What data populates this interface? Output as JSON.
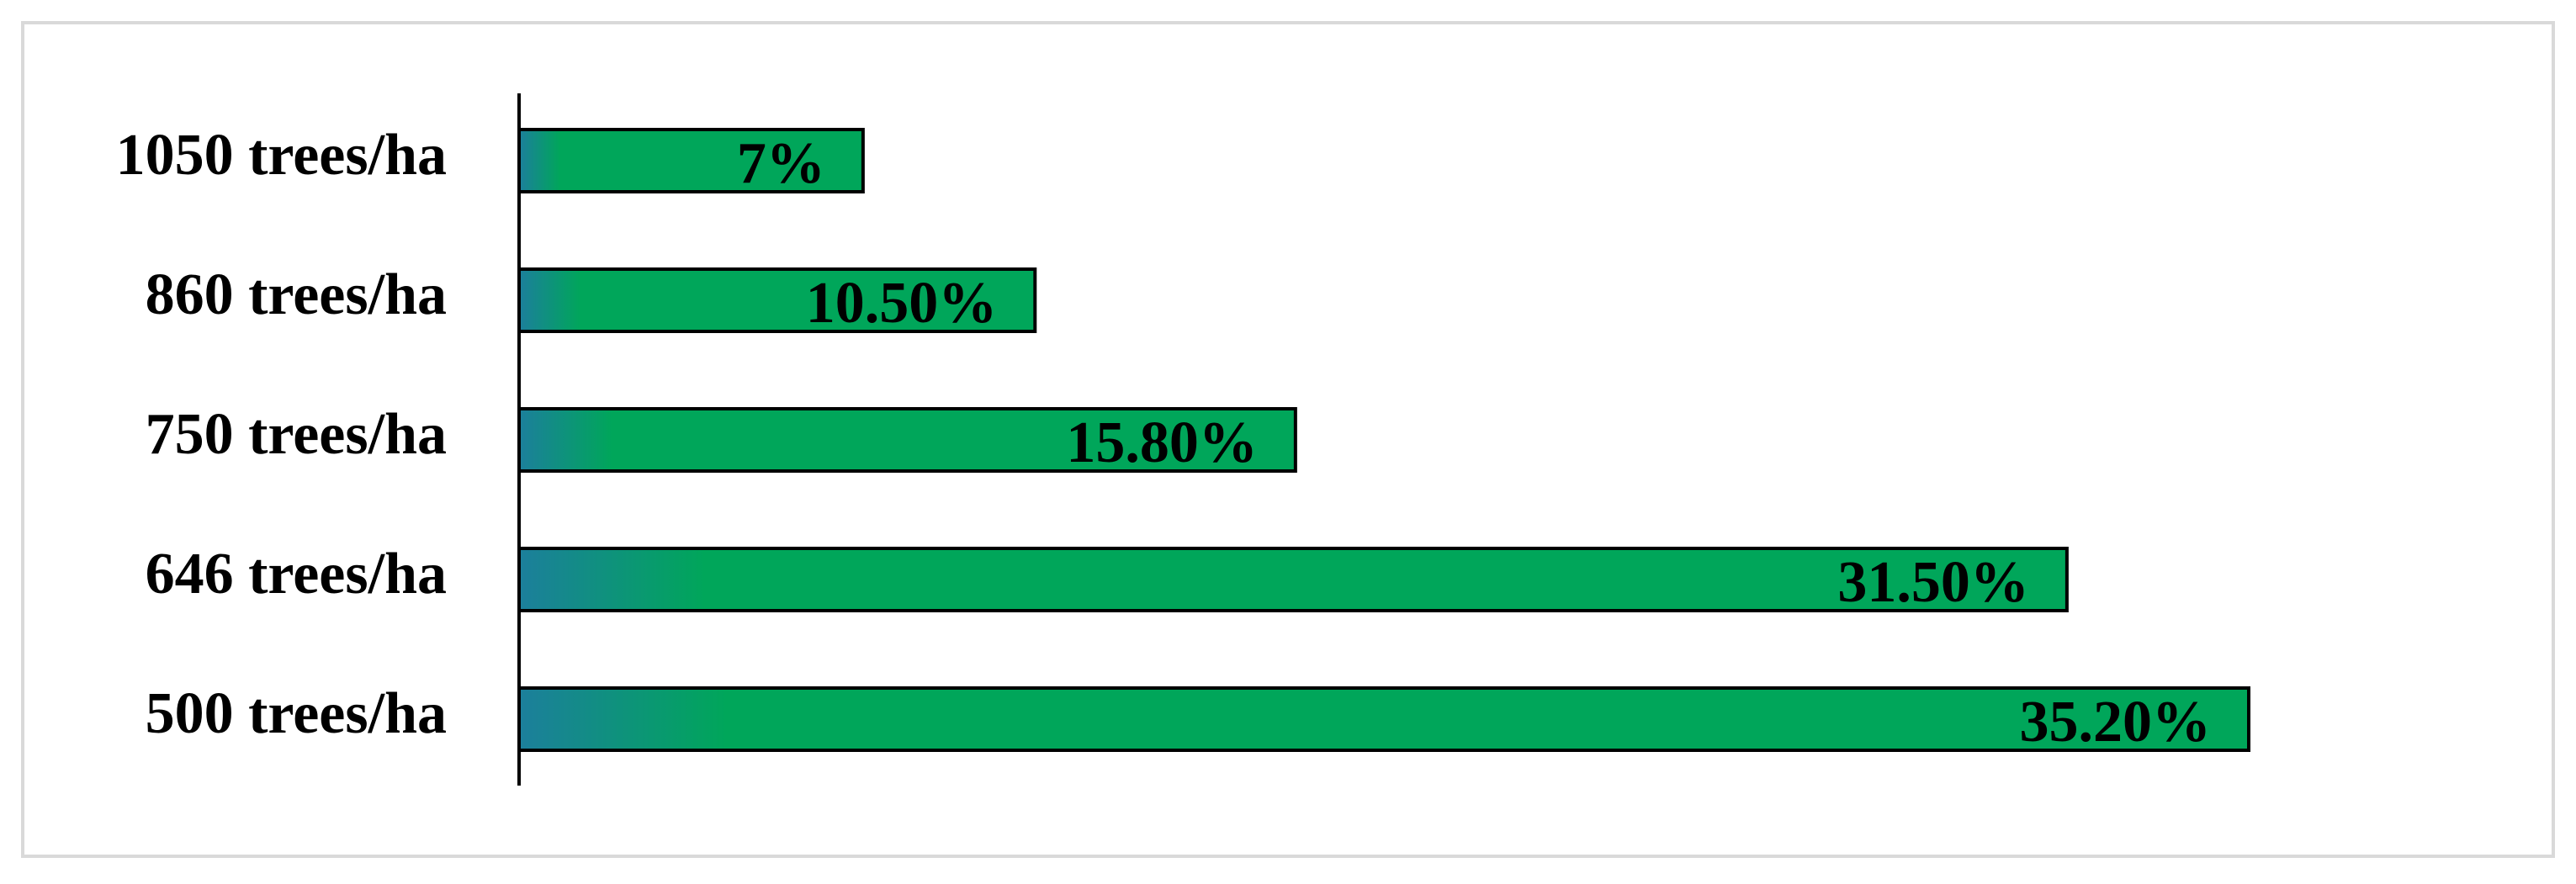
{
  "chart_data": {
    "type": "bar",
    "orientation": "horizontal",
    "categories": [
      "1050 trees/ha",
      "860 trees/ha",
      "750 trees/ha",
      "646 trees/ha",
      "500 trees/ha"
    ],
    "values": [
      7,
      10.5,
      15.8,
      31.5,
      35.2
    ],
    "value_labels": [
      "7%",
      "10.50%",
      "15.80%",
      "31.50%",
      "35.20%"
    ],
    "color": "#00a65a"
  }
}
